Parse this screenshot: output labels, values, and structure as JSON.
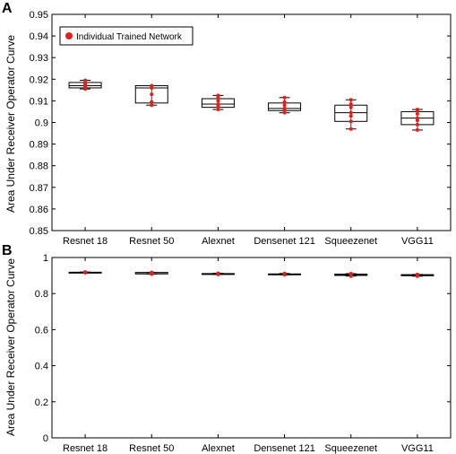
{
  "chart_data": [
    {
      "panel": "A",
      "type": "box",
      "ylabel": "Area Under Receiver Operator Curve",
      "ylim": [
        0.85,
        0.95
      ],
      "yticks": [
        0.85,
        0.86,
        0.87,
        0.88,
        0.89,
        0.9,
        0.91,
        0.92,
        0.93,
        0.94,
        0.95
      ],
      "ytick_labels": [
        "0.85",
        "0.86",
        "0.87",
        "0.88",
        "0.89",
        "0.9",
        "0.91",
        "0.92",
        "0.93",
        "0.94",
        "0.95"
      ],
      "categories": [
        "Resnet 18",
        "Resnet 50",
        "Alexnet",
        "Densenet 121",
        "Squeezenet",
        "VGG11"
      ],
      "legend": {
        "label": "Individual Trained Network",
        "position": "top-left",
        "color": "#e0201b"
      },
      "boxes": [
        {
          "min": 0.9155,
          "q1": 0.916,
          "median": 0.917,
          "q3": 0.9185,
          "max": 0.9195
        },
        {
          "min": 0.908,
          "q1": 0.909,
          "median": 0.916,
          "q3": 0.917,
          "max": 0.917
        },
        {
          "min": 0.906,
          "q1": 0.907,
          "median": 0.9085,
          "q3": 0.911,
          "max": 0.9125
        },
        {
          "min": 0.9045,
          "q1": 0.9055,
          "median": 0.9065,
          "q3": 0.909,
          "max": 0.9115
        },
        {
          "min": 0.897,
          "q1": 0.9005,
          "median": 0.9045,
          "q3": 0.908,
          "max": 0.9105
        },
        {
          "min": 0.8965,
          "q1": 0.899,
          "median": 0.902,
          "q3": 0.905,
          "max": 0.906
        }
      ],
      "points": [
        [
          0.9155,
          0.9165,
          0.917,
          0.9175,
          0.918,
          0.9185,
          0.9195
        ],
        [
          0.908,
          0.9095,
          0.913,
          0.916,
          0.9165,
          0.917
        ],
        [
          0.906,
          0.9075,
          0.9085,
          0.91,
          0.9115,
          0.9125
        ],
        [
          0.9045,
          0.906,
          0.9065,
          0.908,
          0.9095,
          0.9115
        ],
        [
          0.897,
          0.9005,
          0.903,
          0.9045,
          0.907,
          0.9085,
          0.9105
        ],
        [
          0.8965,
          0.899,
          0.901,
          0.902,
          0.904,
          0.9055,
          0.906
        ]
      ]
    },
    {
      "panel": "B",
      "type": "box",
      "ylabel": "Area Under Receiver Operator Curve",
      "ylim": [
        0,
        1
      ],
      "yticks": [
        0,
        0.2,
        0.4,
        0.6,
        0.8,
        1
      ],
      "ytick_labels": [
        "0",
        "0.2",
        "0.4",
        "0.6",
        "0.8",
        "1"
      ],
      "categories": [
        "Resnet 18",
        "Resnet 50",
        "Alexnet",
        "Densenet 121",
        "Squeezenet",
        "VGG11"
      ],
      "boxes": [
        {
          "min": 0.9155,
          "q1": 0.916,
          "median": 0.917,
          "q3": 0.9185,
          "max": 0.9195
        },
        {
          "min": 0.908,
          "q1": 0.909,
          "median": 0.916,
          "q3": 0.917,
          "max": 0.917
        },
        {
          "min": 0.906,
          "q1": 0.907,
          "median": 0.9085,
          "q3": 0.911,
          "max": 0.9125
        },
        {
          "min": 0.9045,
          "q1": 0.9055,
          "median": 0.9065,
          "q3": 0.909,
          "max": 0.9115
        },
        {
          "min": 0.897,
          "q1": 0.9005,
          "median": 0.9045,
          "q3": 0.908,
          "max": 0.9105
        },
        {
          "min": 0.8965,
          "q1": 0.899,
          "median": 0.902,
          "q3": 0.905,
          "max": 0.906
        }
      ],
      "points": [
        [
          0.9155,
          0.9165,
          0.917,
          0.9175,
          0.918,
          0.9185,
          0.9195
        ],
        [
          0.908,
          0.9095,
          0.913,
          0.916,
          0.9165,
          0.917
        ],
        [
          0.906,
          0.9075,
          0.9085,
          0.91,
          0.9115,
          0.9125
        ],
        [
          0.9045,
          0.906,
          0.9065,
          0.908,
          0.9095,
          0.9115
        ],
        [
          0.897,
          0.9005,
          0.903,
          0.9045,
          0.907,
          0.9085,
          0.9105
        ],
        [
          0.8965,
          0.899,
          0.901,
          0.902,
          0.904,
          0.9055,
          0.906
        ]
      ]
    }
  ],
  "colors": {
    "point": "#e0201b",
    "box": "#000000",
    "whisker": "#8a1a1a",
    "frame": "#000000"
  }
}
